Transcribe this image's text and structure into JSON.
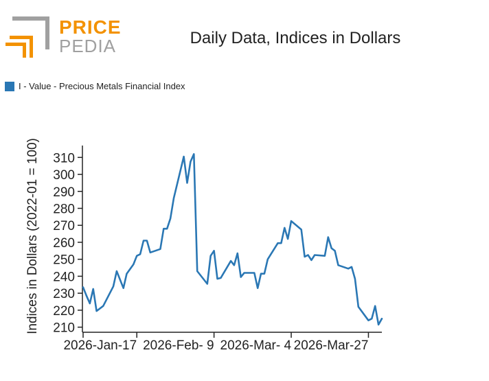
{
  "brand": {
    "name_top": "PRICE",
    "name_bottom": "PEDIA",
    "orange": "#f39200",
    "gray": "#a0a0a0"
  },
  "chart_data": {
    "type": "line",
    "title": "Daily Data, Indices in Dollars",
    "xlabel": "",
    "ylabel": "Indices in Dollars (2022-01 = 100)",
    "ylim": [
      207,
      317
    ],
    "yticks": [
      210,
      220,
      230,
      240,
      250,
      260,
      270,
      280,
      290,
      300,
      310
    ],
    "xrange": [
      "2026-01-01",
      "2026-03-31"
    ],
    "xticks": [
      {
        "date": "2026-01-17",
        "label": "2026-Jan-17"
      },
      {
        "date": "2026-02-09",
        "label": "2026-Feb- 9"
      },
      {
        "date": "2026-03-04",
        "label": "2026-Mar- 4"
      },
      {
        "date": "2026-03-27",
        "label": "2026-Mar-27"
      }
    ],
    "legend_position": "top-left",
    "series": [
      {
        "name": "I - Value - Precious Metals Financial Index",
        "color": "#2a77b4",
        "points": [
          [
            "2026-01-01",
            233.5
          ],
          [
            "2026-01-02",
            228.5
          ],
          [
            "2026-01-03",
            224.0
          ],
          [
            "2026-01-04",
            232.5
          ],
          [
            "2026-01-05",
            219.5
          ],
          [
            "2026-01-07",
            222.5
          ],
          [
            "2026-01-10",
            234.0
          ],
          [
            "2026-01-11",
            243.0
          ],
          [
            "2026-01-13",
            233.0
          ],
          [
            "2026-01-14",
            241.5
          ],
          [
            "2026-01-16",
            247.0
          ],
          [
            "2026-01-17",
            252.0
          ],
          [
            "2026-01-18",
            253.0
          ],
          [
            "2026-01-19",
            261.0
          ],
          [
            "2026-01-20",
            261.0
          ],
          [
            "2026-01-21",
            254.0
          ],
          [
            "2026-01-24",
            256.0
          ],
          [
            "2026-01-25",
            268.0
          ],
          [
            "2026-01-26",
            268.0
          ],
          [
            "2026-01-27",
            274.0
          ],
          [
            "2026-01-28",
            286.0
          ],
          [
            "2026-01-31",
            310.5
          ],
          [
            "2026-02-01",
            295.0
          ],
          [
            "2026-02-02",
            307.5
          ],
          [
            "2026-02-03",
            312.0
          ],
          [
            "2026-02-04",
            243.0
          ],
          [
            "2026-02-07",
            235.5
          ],
          [
            "2026-02-08",
            252.0
          ],
          [
            "2026-02-09",
            255.0
          ],
          [
            "2026-02-10",
            238.5
          ],
          [
            "2026-02-11",
            239.0
          ],
          [
            "2026-02-14",
            249.0
          ],
          [
            "2026-02-15",
            246.5
          ],
          [
            "2026-02-16",
            253.5
          ],
          [
            "2026-02-17",
            239.5
          ],
          [
            "2026-02-18",
            242.0
          ],
          [
            "2026-02-21",
            242.0
          ],
          [
            "2026-02-22",
            233.0
          ],
          [
            "2026-02-23",
            241.5
          ],
          [
            "2026-02-24",
            241.5
          ],
          [
            "2026-02-25",
            250.0
          ],
          [
            "2026-02-28",
            259.5
          ],
          [
            "2026-03-01",
            259.5
          ],
          [
            "2026-03-02",
            268.5
          ],
          [
            "2026-03-03",
            262.0
          ],
          [
            "2026-03-04",
            272.5
          ],
          [
            "2026-03-07",
            267.5
          ],
          [
            "2026-03-08",
            251.5
          ],
          [
            "2026-03-09",
            252.5
          ],
          [
            "2026-03-10",
            249.5
          ],
          [
            "2026-03-11",
            252.5
          ],
          [
            "2026-03-14",
            252.0
          ],
          [
            "2026-03-15",
            263.0
          ],
          [
            "2026-03-16",
            256.5
          ],
          [
            "2026-03-17",
            255.0
          ],
          [
            "2026-03-18",
            246.5
          ],
          [
            "2026-03-21",
            244.5
          ],
          [
            "2026-03-22",
            245.5
          ],
          [
            "2026-03-23",
            238.5
          ],
          [
            "2026-03-24",
            222.0
          ],
          [
            "2026-03-27",
            214.0
          ],
          [
            "2026-03-28",
            215.0
          ],
          [
            "2026-03-29",
            222.5
          ],
          [
            "2026-03-30",
            211.5
          ],
          [
            "2026-03-31",
            215.0
          ]
        ]
      }
    ]
  }
}
